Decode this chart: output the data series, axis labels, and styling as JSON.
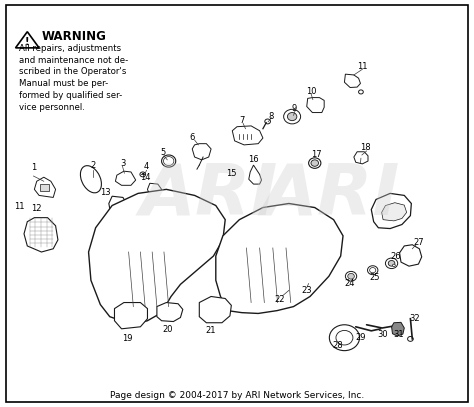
{
  "background_color": "#ffffff",
  "border_color": "#000000",
  "title": "Page design © 2004-2017 by ARI Network Services, Inc.",
  "warning_title": "WARNING",
  "warning_text": "All repairs, adjustments\nand maintenance not de-\nscribed in the Operator's\nManual must be per-\nformed by qualified ser-\nvice personnel.",
  "watermark_text": "ARI",
  "image_color": "#1a1a1a",
  "footer_fontsize": 6.5,
  "warning_fontsize": 7.5
}
